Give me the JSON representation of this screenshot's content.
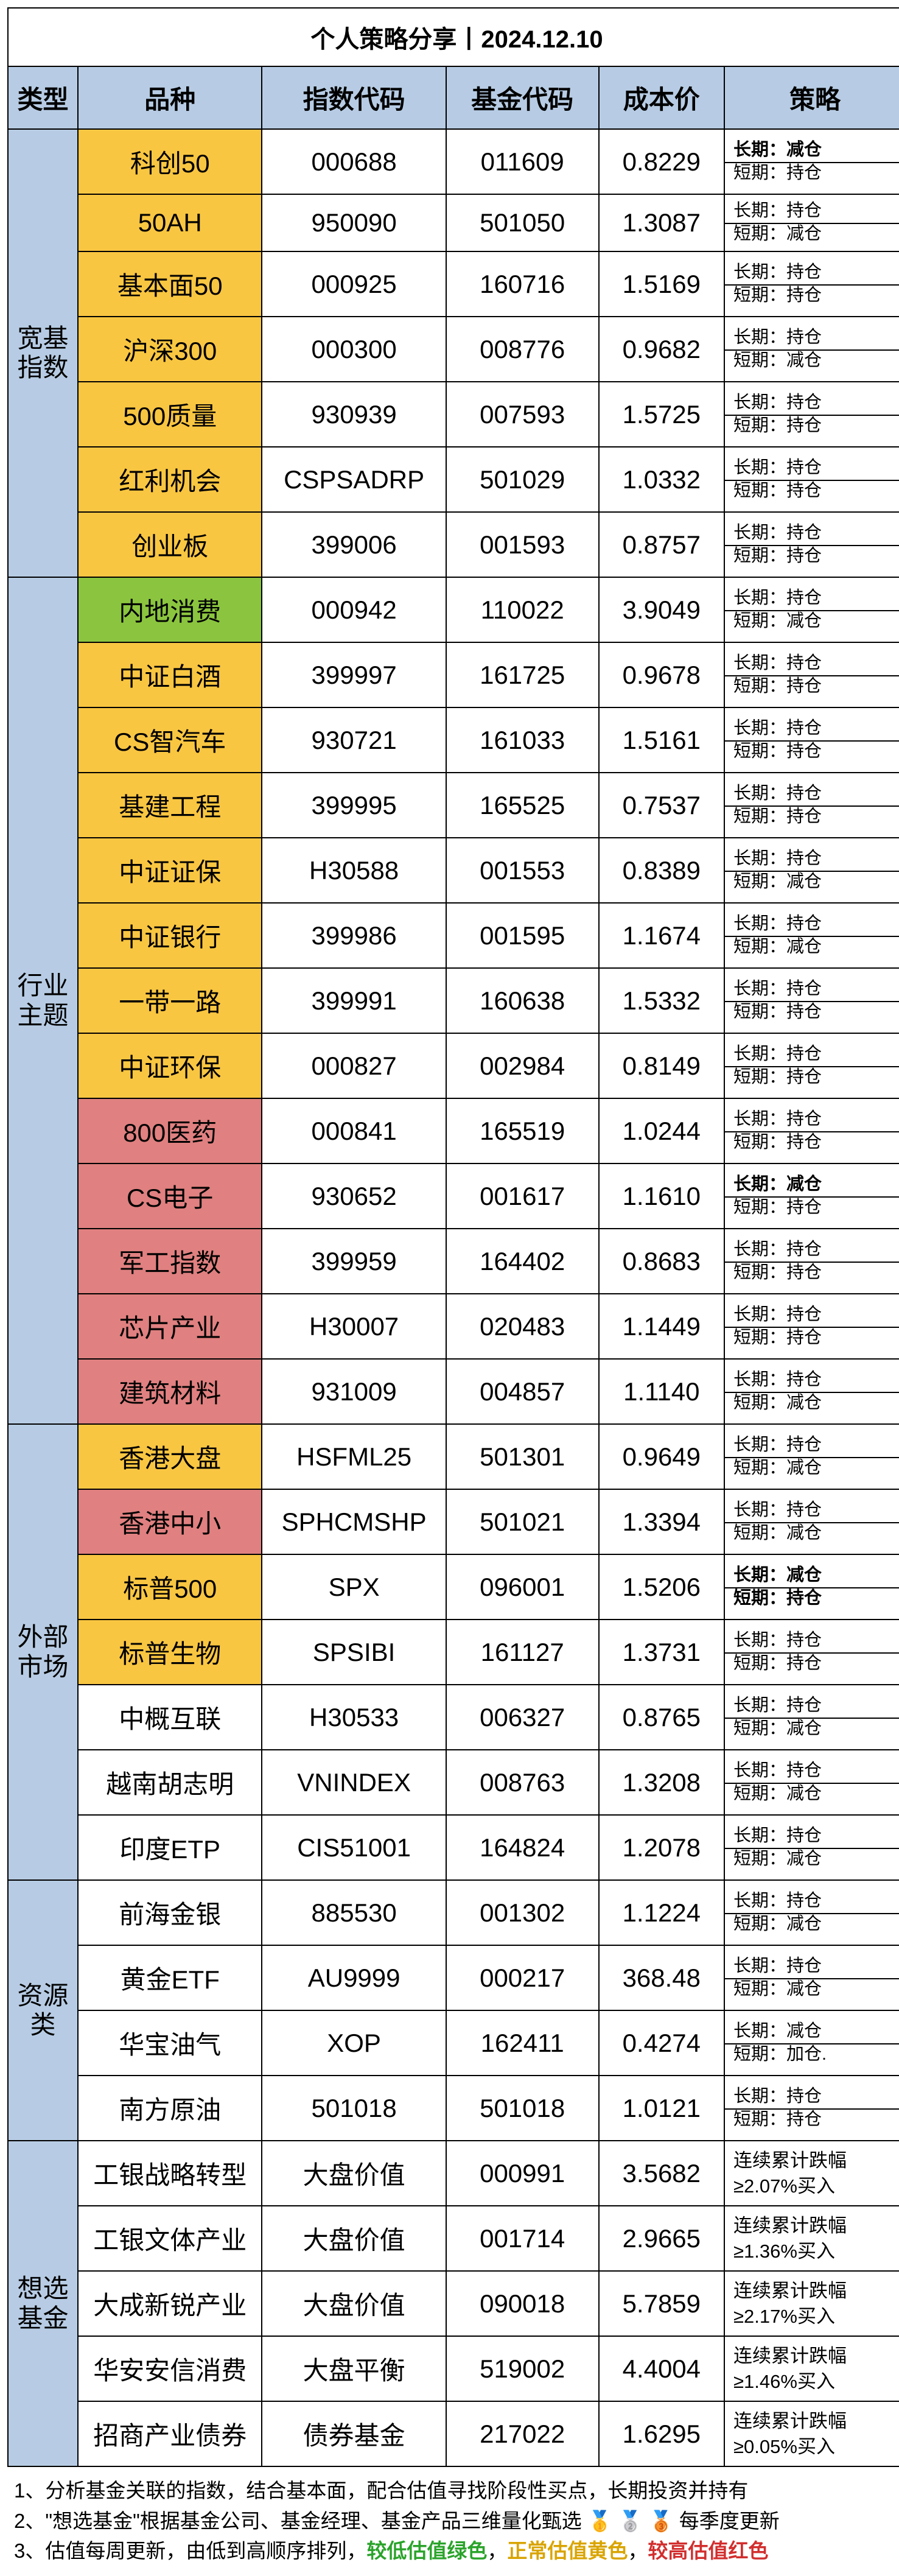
{
  "title": "个人策略分享丨2024.12.10",
  "headers": {
    "type": "类型",
    "name": "品种",
    "index_code": "指数代码",
    "fund_code": "基金代码",
    "cost": "成本价",
    "strategy": "策略"
  },
  "colors": {
    "header_bg": "#b7cce4",
    "yellow": "#f9c642",
    "green": "#8bc53f",
    "red": "#e08080",
    "white": "#ffffff"
  },
  "categories": [
    {
      "id": "broad",
      "label": "宽基\n指数"
    },
    {
      "id": "industry",
      "label": "行业\n主题"
    },
    {
      "id": "external",
      "label": "外部\n市场"
    },
    {
      "id": "resource",
      "label": "资源\n类"
    },
    {
      "id": "picks",
      "label": "想选\n基金"
    }
  ],
  "rows": [
    {
      "cat": "broad",
      "name": "科创50",
      "name_color": "yellow",
      "idx": "000688",
      "fund": "011609",
      "cost": "0.8229",
      "lt": "长期：减仓",
      "st": "短期：持仓",
      "lt_bold": true
    },
    {
      "cat": "broad",
      "name": "50AH",
      "name_color": "yellow",
      "idx": "950090",
      "fund": "501050",
      "cost": "1.3087",
      "lt": "长期：持仓",
      "st": "短期：减仓"
    },
    {
      "cat": "broad",
      "name": "基本面50",
      "name_color": "yellow",
      "idx": "000925",
      "fund": "160716",
      "cost": "1.5169",
      "lt": "长期：持仓",
      "st": "短期：持仓"
    },
    {
      "cat": "broad",
      "name": "沪深300",
      "name_color": "yellow",
      "idx": "000300",
      "fund": "008776",
      "cost": "0.9682",
      "lt": "长期：持仓",
      "st": "短期：减仓"
    },
    {
      "cat": "broad",
      "name": "500质量",
      "name_color": "yellow",
      "idx": "930939",
      "fund": "007593",
      "cost": "1.5725",
      "lt": "长期：持仓",
      "st": "短期：持仓"
    },
    {
      "cat": "broad",
      "name": "红利机会",
      "name_color": "yellow",
      "idx": "CSPSADRP",
      "fund": "501029",
      "cost": "1.0332",
      "lt": "长期：持仓",
      "st": "短期：持仓"
    },
    {
      "cat": "broad",
      "name": "创业板",
      "name_color": "yellow",
      "idx": "399006",
      "fund": "001593",
      "cost": "0.8757",
      "lt": "长期：持仓",
      "st": "短期：持仓"
    },
    {
      "cat": "industry",
      "name": "内地消费",
      "name_color": "green",
      "idx": "000942",
      "fund": "110022",
      "cost": "3.9049",
      "lt": "长期：持仓",
      "st": "短期：减仓"
    },
    {
      "cat": "industry",
      "name": "中证白酒",
      "name_color": "yellow",
      "idx": "399997",
      "fund": "161725",
      "cost": "0.9678",
      "lt": "长期：持仓",
      "st": "短期：持仓"
    },
    {
      "cat": "industry",
      "name": "CS智汽车",
      "name_color": "yellow",
      "idx": "930721",
      "fund": "161033",
      "cost": "1.5161",
      "lt": "长期：持仓",
      "st": "短期：持仓"
    },
    {
      "cat": "industry",
      "name": "基建工程",
      "name_color": "yellow",
      "idx": "399995",
      "fund": "165525",
      "cost": "0.7537",
      "lt": "长期：持仓",
      "st": "短期：持仓"
    },
    {
      "cat": "industry",
      "name": "中证证保",
      "name_color": "yellow",
      "idx": "H30588",
      "fund": "001553",
      "cost": "0.8389",
      "lt": "长期：持仓",
      "st": "短期：减仓"
    },
    {
      "cat": "industry",
      "name": "中证银行",
      "name_color": "yellow",
      "idx": "399986",
      "fund": "001595",
      "cost": "1.1674",
      "lt": "长期：持仓",
      "st": "短期：减仓"
    },
    {
      "cat": "industry",
      "name": "一带一路",
      "name_color": "yellow",
      "idx": "399991",
      "fund": "160638",
      "cost": "1.5332",
      "lt": "长期：持仓",
      "st": "短期：持仓"
    },
    {
      "cat": "industry",
      "name": "中证环保",
      "name_color": "yellow",
      "idx": "000827",
      "fund": "002984",
      "cost": "0.8149",
      "lt": "长期：持仓",
      "st": "短期：持仓"
    },
    {
      "cat": "industry",
      "name": "800医药",
      "name_color": "red",
      "idx": "000841",
      "fund": "165519",
      "cost": "1.0244",
      "lt": "长期：持仓",
      "st": "短期：持仓"
    },
    {
      "cat": "industry",
      "name": "CS电子",
      "name_color": "red",
      "idx": "930652",
      "fund": "001617",
      "cost": "1.1610",
      "lt": "长期：减仓",
      "st": "短期：持仓",
      "lt_bold": true
    },
    {
      "cat": "industry",
      "name": "军工指数",
      "name_color": "red",
      "idx": "399959",
      "fund": "164402",
      "cost": "0.8683",
      "lt": "长期：持仓",
      "st": "短期：持仓"
    },
    {
      "cat": "industry",
      "name": "芯片产业",
      "name_color": "red",
      "idx": "H30007",
      "fund": "020483",
      "cost": "1.1449",
      "lt": "长期：持仓",
      "st": "短期：持仓"
    },
    {
      "cat": "industry",
      "name": "建筑材料",
      "name_color": "red",
      "idx": "931009",
      "fund": "004857",
      "cost": "1.1140",
      "lt": "长期：持仓",
      "st": "短期：减仓"
    },
    {
      "cat": "external",
      "name": "香港大盘",
      "name_color": "yellow",
      "idx": "HSFML25",
      "fund": "501301",
      "cost": "0.9649",
      "lt": "长期：持仓",
      "st": "短期：减仓"
    },
    {
      "cat": "external",
      "name": "香港中小",
      "name_color": "red",
      "idx": "SPHCMSHP",
      "fund": "501021",
      "cost": "1.3394",
      "lt": "长期：持仓",
      "st": "短期：减仓"
    },
    {
      "cat": "external",
      "name": "标普500",
      "name_color": "yellow",
      "idx": "SPX",
      "fund": "096001",
      "cost": "1.5206",
      "lt": "长期：减仓",
      "st": "短期：持仓",
      "lt_bold": true,
      "st_bold": true
    },
    {
      "cat": "external",
      "name": "标普生物",
      "name_color": "yellow",
      "idx": "SPSIBI",
      "fund": "161127",
      "cost": "1.3731",
      "lt": "长期：持仓",
      "st": "短期：持仓"
    },
    {
      "cat": "external",
      "name": "中概互联",
      "name_color": "white",
      "idx": "H30533",
      "fund": "006327",
      "cost": "0.8765",
      "lt": "长期：持仓",
      "st": "短期：减仓"
    },
    {
      "cat": "external",
      "name": "越南胡志明",
      "name_color": "white",
      "idx": "VNINDEX",
      "fund": "008763",
      "cost": "1.3208",
      "lt": "长期：持仓",
      "st": "短期：减仓"
    },
    {
      "cat": "external",
      "name": "印度ETP",
      "name_color": "white",
      "idx": "CIS51001",
      "fund": "164824",
      "cost": "1.2078",
      "lt": "长期：持仓",
      "st": "短期：减仓"
    },
    {
      "cat": "resource",
      "name": "前海金银",
      "name_color": "white",
      "idx": "885530",
      "fund": "001302",
      "cost": "1.1224",
      "lt": "长期：持仓",
      "st": "短期：减仓"
    },
    {
      "cat": "resource",
      "name": "黄金ETF",
      "name_color": "white",
      "idx": "AU9999",
      "fund": "000217",
      "cost": "368.48",
      "lt": "长期：持仓",
      "st": "短期：减仓"
    },
    {
      "cat": "resource",
      "name": "华宝油气",
      "name_color": "white",
      "idx": "XOP",
      "fund": "162411",
      "cost": "0.4274",
      "lt": "长期：减仓",
      "st": "短期：加仓."
    },
    {
      "cat": "resource",
      "name": "南方原油",
      "name_color": "white",
      "idx": "501018",
      "fund": "501018",
      "cost": "1.0121",
      "lt": "长期：持仓",
      "st": "短期：持仓"
    },
    {
      "cat": "picks",
      "name": "工银战略转型",
      "name_color": "white",
      "idx": "大盘价值",
      "fund": "000991",
      "cost": "3.5682",
      "strat2a": "连续累计跌幅",
      "strat2b": "≥2.07%买入"
    },
    {
      "cat": "picks",
      "name": "工银文体产业",
      "name_color": "white",
      "idx": "大盘价值",
      "fund": "001714",
      "cost": "2.9665",
      "strat2a": "连续累计跌幅",
      "strat2b": "≥1.36%买入"
    },
    {
      "cat": "picks",
      "name": "大成新锐产业",
      "name_color": "white",
      "idx": "大盘价值",
      "fund": "090018",
      "cost": "5.7859",
      "strat2a": "连续累计跌幅",
      "strat2b": "≥2.17%买入"
    },
    {
      "cat": "picks",
      "name": "华安安信消费",
      "name_color": "white",
      "idx": "大盘平衡",
      "fund": "519002",
      "cost": "4.4004",
      "strat2a": "连续累计跌幅",
      "strat2b": "≥1.46%买入"
    },
    {
      "cat": "picks",
      "name": "招商产业债券",
      "name_color": "white",
      "idx": "债券基金",
      "fund": "217022",
      "cost": "1.6295",
      "strat2a": "连续累计跌幅",
      "strat2b": "≥0.05%买入"
    }
  ],
  "footnotes": {
    "l1": "1、分析基金关联的指数，结合基本面，配合估值寻找阶段性买点，长期投资并持有",
    "l2a": "2、\"想选基金\"根据基金公司、基金经理、基金产品三维量化甄选 ",
    "l2b": "🥇 🥈 🥉 每季度更新",
    "l3a": "3、估值每周更新，由低到高顺序排列，",
    "l3_low": "较低估值绿色",
    "l3_s1": "，",
    "l3_mid": "正常估值黄色",
    "l3_s2": "，",
    "l3_high": "较高估值红色"
  }
}
